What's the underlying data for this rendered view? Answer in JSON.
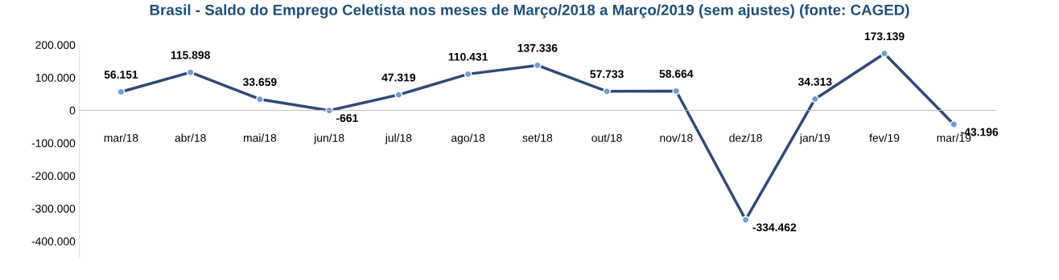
{
  "chart_data": {
    "type": "line",
    "title": "Brasil - Saldo do Emprego Celetista nos meses de Março/2018 a Março/2019 (sem ajustes) (fonte: CAGED)",
    "categories": [
      "mar/18",
      "abr/18",
      "mai/18",
      "jun/18",
      "jul/18",
      "ago/18",
      "set/18",
      "out/18",
      "nov/18",
      "dez/18",
      "jan/19",
      "fev/19",
      "mar/19"
    ],
    "series": [
      {
        "color": "#2e4a78",
        "values": [
          56151,
          115898,
          33659,
          -661,
          47319,
          110431,
          137336,
          57733,
          58664,
          -334462,
          34313,
          173139,
          -43196
        ],
        "value_labels": [
          "56.151",
          "115.898",
          "33.659",
          "-661",
          "47.319",
          "110.431",
          "137.336",
          "57.733",
          "58.664",
          "-334.462",
          "34.313",
          "173.139",
          "-43.196"
        ]
      }
    ],
    "ylim": [
      -450000,
      200000
    ],
    "yticks": [
      {
        "value": -400000,
        "label": "-400.000"
      },
      {
        "value": -300000,
        "label": "-300.000"
      },
      {
        "value": -200000,
        "label": "-200.000"
      },
      {
        "value": -100000,
        "label": "-100.000"
      },
      {
        "value": 0,
        "label": "0"
      },
      {
        "value": 100000,
        "label": "100.000"
      },
      {
        "value": 200000,
        "label": "200.000"
      }
    ],
    "marker": "circle",
    "line_style": "solid",
    "grid": false,
    "legend": false
  }
}
